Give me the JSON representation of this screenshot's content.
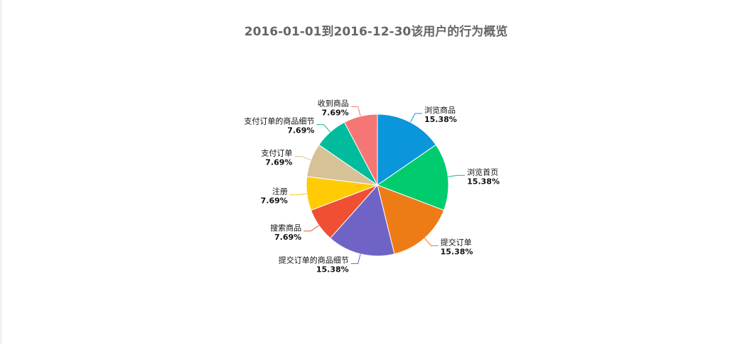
{
  "chart_data": {
    "type": "pie",
    "title": "2016-01-01到2016-12-30该用户的行为概览",
    "slices": [
      {
        "name": "浏览商品",
        "value": 15.38,
        "label": "15.38%",
        "color": "#0b96dc"
      },
      {
        "name": "浏览首页",
        "value": 15.38,
        "label": "15.38%",
        "color": "#00cc6e"
      },
      {
        "name": "提交订单",
        "value": 15.38,
        "label": "15.38%",
        "color": "#ee7c16"
      },
      {
        "name": "提交订单的商品细节",
        "value": 15.38,
        "label": "15.38%",
        "color": "#6f64c6"
      },
      {
        "name": "搜索商品",
        "value": 7.69,
        "label": "7.69%",
        "color": "#ef5033"
      },
      {
        "name": "注册",
        "value": 7.69,
        "label": "7.69%",
        "color": "#ffcb05"
      },
      {
        "name": "支付订单",
        "value": 7.69,
        "label": "7.69%",
        "color": "#d7c297"
      },
      {
        "name": "支付订单的商品细节",
        "value": 7.69,
        "label": "7.69%",
        "color": "#00bb9c"
      },
      {
        "name": "收到商品",
        "value": 7.69,
        "label": "7.69%",
        "color": "#f67676"
      }
    ]
  }
}
